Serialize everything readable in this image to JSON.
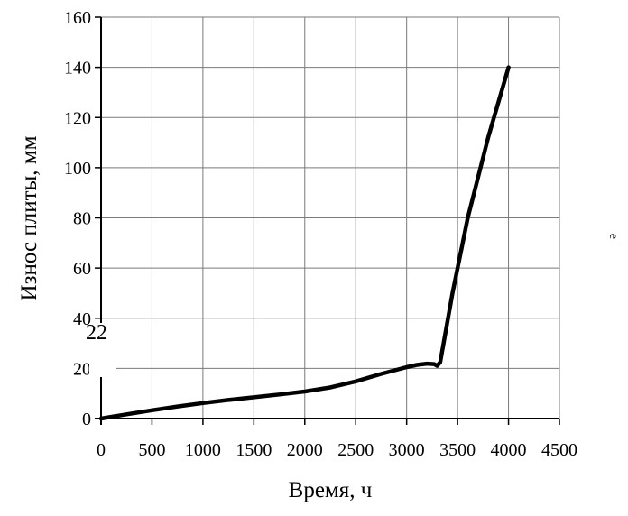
{
  "chart_data": {
    "type": "line",
    "xlabel": "Время, ч",
    "ylabel": "Износ плиты, мм",
    "xlim": [
      0,
      4500
    ],
    "ylim": [
      0,
      160
    ],
    "x_ticks": [
      0,
      500,
      1000,
      1500,
      2000,
      2500,
      3000,
      3500,
      4000,
      4500
    ],
    "x_tick_labels": [
      "0",
      "500",
      "1000",
      "1500",
      "2000",
      "2500",
      "3000",
      "3500",
      "4000",
      "4500"
    ],
    "y_ticks": [
      0,
      20,
      40,
      60,
      80,
      100,
      120,
      140,
      160
    ],
    "y_tick_labels": [
      "0",
      "20",
      "40",
      "60",
      "80",
      "100",
      "120",
      "140",
      "160"
    ],
    "grid": true,
    "legend": "none",
    "series": [
      {
        "color": "#000000",
        "x": [
          0,
          250,
          500,
          750,
          1000,
          1250,
          1500,
          1750,
          2000,
          2250,
          2500,
          2750,
          3000,
          3100,
          3200,
          3270,
          3300,
          3330,
          3450,
          3600,
          3800,
          4000
        ],
        "y": [
          0,
          1.7,
          3.3,
          4.8,
          6.2,
          7.4,
          8.5,
          9.6,
          10.8,
          12.4,
          14.8,
          17.8,
          20.5,
          21.4,
          21.9,
          21.7,
          21.0,
          22.5,
          50,
          80,
          112,
          140
        ]
      }
    ],
    "annotations": [
      "22"
    ],
    "side_text": "e"
  }
}
